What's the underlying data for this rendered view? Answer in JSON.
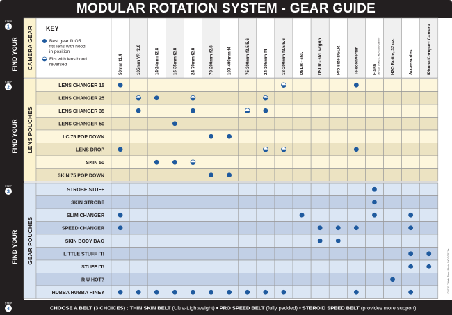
{
  "title": "MODULAR ROTATION SYSTEM - GEAR GUIDE",
  "steps": [
    {
      "label": "STEP",
      "number": "1",
      "side": "FIND YOUR",
      "category": "CAMERA GEAR"
    },
    {
      "label": "STEP",
      "number": "2",
      "side": "FIND YOUR",
      "category": "LENS POUCHES"
    },
    {
      "label": "STEP",
      "number": "3",
      "side": "FIND YOUR",
      "category": "GEAR POUCHES"
    },
    {
      "label": "STEP",
      "number": "4"
    }
  ],
  "key": {
    "title": "KEY",
    "items": [
      {
        "icon": "full-dot-icon",
        "lines": [
          "Best gear fit OR",
          "fits lens with hood",
          "in position"
        ]
      },
      {
        "icon": "half-dot-icon",
        "lines": [
          "Fits with lens hood",
          "reversed"
        ]
      }
    ]
  },
  "columns": [
    {
      "label": "50mm f1.4"
    },
    {
      "label": "105mm VR f2.8"
    },
    {
      "label": "14-24mm f2.8"
    },
    {
      "label": "16-35mm f2.8"
    },
    {
      "label": "24-70mm f2.8"
    },
    {
      "label": "70-200mm f2.8"
    },
    {
      "label": "100-400mm f4"
    },
    {
      "label": "75-300mm f3.5/5.6"
    },
    {
      "label": "24-105mm f4"
    },
    {
      "label": "18-200mm f3.5/5.6"
    },
    {
      "label": "DSLR - std."
    },
    {
      "label": "DSLR - std. w/grip"
    },
    {
      "label": "Pro size DSLR"
    },
    {
      "label": "Teleconverter"
    },
    {
      "label": "Flash",
      "sub": "SB-910 (Nikon), 580 EXII (Canon)"
    },
    {
      "label": "H2O Bottle, 32 oz."
    },
    {
      "label": "Accessories"
    },
    {
      "label": "iPhone/Compact Camera"
    }
  ],
  "lens_pouches": [
    {
      "name": "LENS CHANGER 15",
      "full": [
        0,
        13
      ],
      "half": [
        9
      ]
    },
    {
      "name": "LENS CHANGER 25",
      "full": [
        2
      ],
      "half": [
        1,
        4,
        8
      ]
    },
    {
      "name": "LENS CHANGER 35",
      "full": [
        1,
        4,
        8
      ],
      "half": [
        7
      ]
    },
    {
      "name": "LENS CHANGER 50",
      "full": [
        3
      ],
      "half": []
    },
    {
      "name": "LC 75 POP DOWN",
      "full": [
        5,
        6
      ],
      "half": []
    },
    {
      "name": "LENS DROP",
      "full": [
        0,
        13
      ],
      "half": [
        8,
        9
      ]
    },
    {
      "name": "SKIN 50",
      "full": [
        2,
        3
      ],
      "half": [
        4
      ]
    },
    {
      "name": "SKIN 75 POP DOWN",
      "full": [
        5,
        6
      ],
      "half": []
    }
  ],
  "gear_pouches": [
    {
      "name": "STROBE STUFF",
      "full": [
        14
      ],
      "half": []
    },
    {
      "name": "SKIN STROBE",
      "full": [
        14
      ],
      "half": []
    },
    {
      "name": "SLIM CHANGER",
      "full": [
        0,
        10,
        14,
        16
      ],
      "half": []
    },
    {
      "name": "SPEED CHANGER",
      "full": [
        0,
        11,
        12,
        13,
        16
      ],
      "half": []
    },
    {
      "name": "SKIN BODY BAG",
      "full": [
        11,
        12
      ],
      "half": []
    },
    {
      "name": "LITTLE STUFF IT!",
      "full": [
        16,
        17
      ],
      "half": []
    },
    {
      "name": "STUFF IT!",
      "full": [
        16,
        17
      ],
      "half": []
    },
    {
      "name": "R U HOT?",
      "full": [
        15
      ],
      "half": []
    },
    {
      "name": "HUBBA HUBBA HINEY",
      "full": [
        0,
        1,
        2,
        3,
        4,
        5,
        6,
        7,
        8,
        9,
        13,
        16
      ],
      "half": []
    }
  ],
  "footer": {
    "lead": "CHOOSE A BELT (3 CHOICES) :",
    "belts": [
      {
        "name": "THIN SKIN BELT",
        "note": "(Ultra-Lightweight)"
      },
      {
        "name": "PRO SPEED BELT",
        "note": "(fully padded)"
      },
      {
        "name": "STEROID SPEED BELT",
        "note": "(provides more support)"
      }
    ],
    "separator": "•"
  },
  "copyright": "©2011 Think Tank Photo MGG0011e",
  "colors": {
    "dark": "#231f20",
    "dot": "#1f5a9e",
    "lens_light": "#fdf6dc",
    "lens_dark": "#ece3c2",
    "gear_light": "#dbe6f4",
    "gear_dark": "#c2d0e6",
    "col_alt": "#f0f0f0",
    "header_cat": "#fcf3cf"
  }
}
